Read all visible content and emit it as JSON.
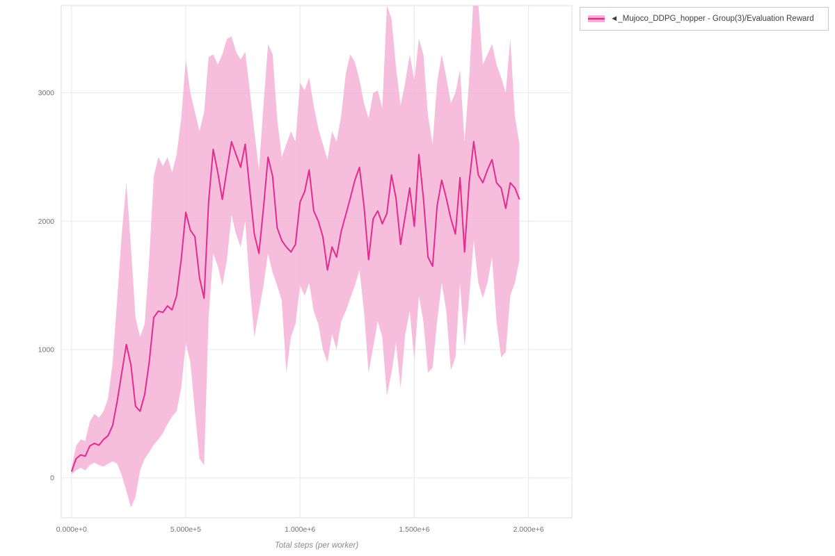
{
  "page": {
    "background": "#ffffff"
  },
  "legend": {
    "items": [
      {
        "label": "◄_Mujoco_DDPG_hopper - Group(3)/Evaluation Reward",
        "line_color": "#e62a8d",
        "band_color": "#f5b1d6"
      }
    ]
  },
  "chart_data": {
    "type": "line",
    "title": "",
    "xlabel": "Total steps (per worker)",
    "ylabel": "",
    "grid": true,
    "legend_position": "top-right",
    "x_start": 0,
    "x_step": 20000,
    "x_range": [
      -45000,
      2190000
    ],
    "y_range": [
      -310,
      3680
    ],
    "x_ticks": {
      "values": [
        0,
        500000,
        1000000,
        1500000,
        2000000
      ],
      "labels": [
        "0.000e+0",
        "5.000e+5",
        "1.000e+6",
        "1.500e+6",
        "2.000e+6"
      ]
    },
    "y_ticks": {
      "values": [
        0,
        1000,
        2000,
        3000
      ],
      "labels": [
        "0",
        "1000",
        "2000",
        "3000"
      ]
    },
    "series": [
      {
        "name": "_Mujoco_DDPG_hopper - Group(3)/Evaluation Reward (mean)",
        "values": [
          50,
          150,
          180,
          170,
          250,
          270,
          255,
          300,
          330,
          410,
          600,
          820,
          1040,
          880,
          560,
          520,
          650,
          900,
          1250,
          1300,
          1290,
          1340,
          1310,
          1420,
          1700,
          2070,
          1930,
          1880,
          1560,
          1400,
          2150,
          2560,
          2380,
          2170,
          2400,
          2620,
          2520,
          2420,
          2600,
          2250,
          1900,
          1750,
          2100,
          2500,
          2350,
          1950,
          1850,
          1800,
          1760,
          1820,
          2150,
          2230,
          2400,
          2080,
          2000,
          1880,
          1620,
          1800,
          1720,
          1920,
          2050,
          2180,
          2320,
          2420,
          2120,
          1700,
          2020,
          2080,
          1980,
          2060,
          2360,
          2180,
          1820,
          2040,
          2260,
          1960,
          2520,
          2180,
          1720,
          1650,
          2120,
          2320,
          2180,
          2020,
          1900,
          2340,
          1760,
          2300,
          2620,
          2360,
          2300,
          2400,
          2480,
          2300,
          2260,
          2100,
          2300,
          2260,
          2170
        ]
      },
      {
        "name": "band lower",
        "values": [
          30,
          60,
          80,
          60,
          100,
          120,
          100,
          90,
          110,
          130,
          110,
          20,
          -100,
          -230,
          -150,
          60,
          150,
          200,
          260,
          300,
          350,
          420,
          480,
          520,
          700,
          1050,
          900,
          520,
          150,
          100,
          1250,
          1750,
          1650,
          1500,
          1700,
          2050,
          1900,
          1800,
          2000,
          1500,
          1100,
          1300,
          1500,
          1750,
          1600,
          1500,
          1380,
          820,
          1100,
          1200,
          1500,
          1420,
          1520,
          1300,
          1200,
          1000,
          900,
          1120,
          1000,
          1220,
          1300,
          1400,
          1500,
          1620,
          1300,
          820,
          1020,
          1220,
          1100,
          640,
          820,
          1050,
          700,
          1120,
          1300,
          920,
          1420,
          1220,
          820,
          860,
          1220,
          1520,
          1300,
          840,
          940,
          1520,
          1020,
          1400,
          1850,
          1520,
          1400,
          1520,
          1720,
          1220,
          940,
          980,
          1420,
          1520,
          1700
        ]
      },
      {
        "name": "band upper",
        "values": [
          80,
          250,
          300,
          290,
          440,
          500,
          470,
          520,
          620,
          900,
          1400,
          1900,
          2300,
          1800,
          1250,
          1100,
          1200,
          1700,
          2350,
          2500,
          2430,
          2500,
          2380,
          2520,
          2800,
          3260,
          3000,
          2850,
          2700,
          2850,
          3280,
          3300,
          3220,
          3300,
          3420,
          3440,
          3320,
          3260,
          3320,
          3020,
          2700,
          2400,
          2900,
          3380,
          3300,
          2800,
          2500,
          2600,
          2700,
          2620,
          3080,
          3020,
          3120,
          2900,
          2720,
          2600,
          2480,
          2700,
          2620,
          2820,
          3150,
          3300,
          3240,
          3100,
          2920,
          2800,
          3000,
          3020,
          2880,
          3680,
          3580,
          3200,
          2900,
          3080,
          3300,
          3100,
          3420,
          3300,
          2820,
          2600,
          3080,
          3300,
          3120,
          2920,
          3000,
          3180,
          2620,
          3100,
          3780,
          3700,
          3220,
          3300,
          3380,
          3220,
          3120,
          3000,
          3420,
          2820,
          2600
        ]
      }
    ],
    "colors": {
      "line": "#e62a8d",
      "band": "#f5b1d6",
      "grid": "#e8e8e8",
      "border": "#dcdcdc",
      "tick_text": "#707070",
      "axis_title": "#8a8a8a"
    }
  }
}
